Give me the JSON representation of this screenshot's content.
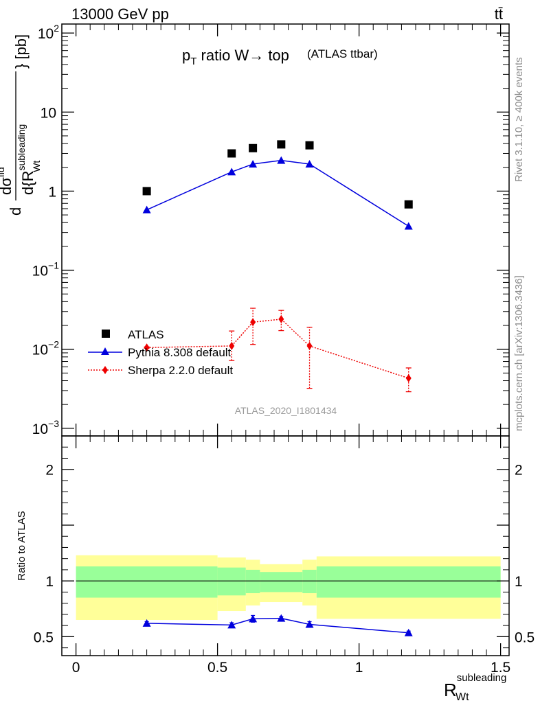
{
  "header": {
    "energy": "13000 GeV pp",
    "process": "tt̄"
  },
  "side_labels": {
    "rivet": "Rivet 3.1.10, ≥ 400k events",
    "mcplots": "mcplots.cern.ch [arXiv:1306.3436]"
  },
  "chart_data": [
    {
      "type": "scatter",
      "title_main": "p",
      "title_sub": "T",
      "title_rest": " ratio W→ top",
      "title_small": "(ATLAS ttbar)",
      "watermark": "ATLAS_2020_I1801434",
      "xlabel": "R",
      "xlabel_sup": "subleading",
      "xlabel_sub": "Wt",
      "ylabel_text": "d{R",
      "ylabel_sup": "subleading",
      "ylabel_sub": "Wt",
      "ylabel_unit": "} [pb]",
      "ylabel_num": "dσ",
      "ylabel_num_sup": "fid",
      "yscale": "log",
      "xlim": [
        -0.05,
        1.53
      ],
      "ylim": [
        0.0008,
        130
      ],
      "yticks": [
        {
          "v": 0.001,
          "base": "10",
          "exp": "−3"
        },
        {
          "v": 0.01,
          "base": "10",
          "exp": "−2"
        },
        {
          "v": 0.1,
          "base": "10",
          "exp": "−1"
        },
        {
          "v": 1,
          "base": "1",
          "exp": ""
        },
        {
          "v": 10,
          "base": "10",
          "exp": ""
        },
        {
          "v": 100,
          "base": "10",
          "exp": "2"
        }
      ],
      "legend_position": "lower-left",
      "series": [
        {
          "name": "ATLAS",
          "color": "#000000",
          "marker": "square",
          "x": [
            0.25,
            0.55,
            0.625,
            0.725,
            0.825,
            1.175
          ],
          "y": [
            1.0,
            3.0,
            3.5,
            3.9,
            3.8,
            0.68
          ]
        },
        {
          "name": "Pythia 8.308 default",
          "color": "#0000dd",
          "marker": "triangle",
          "line": "solid",
          "x": [
            0.25,
            0.55,
            0.625,
            0.725,
            0.825,
            1.175
          ],
          "y": [
            0.58,
            1.75,
            2.2,
            2.45,
            2.2,
            0.36
          ]
        },
        {
          "name": "Sherpa 2.2.0 default",
          "color": "#ee0000",
          "marker": "diamond",
          "line": "dotted",
          "x": [
            0.25,
            0.55,
            0.625,
            0.725,
            0.825,
            1.175
          ],
          "y": [
            0.0105,
            0.011,
            0.022,
            0.024,
            0.011,
            0.0043
          ],
          "yerr_low": [
            0.0103,
            0.0072,
            0.0115,
            0.0172,
            0.0032,
            0.0029
          ],
          "yerr_high": [
            0.0107,
            0.017,
            0.033,
            0.031,
            0.019,
            0.0058
          ]
        }
      ]
    },
    {
      "type": "scatter",
      "ylabel": "Ratio to ATLAS",
      "xlim": [
        -0.05,
        1.53
      ],
      "ylim": [
        0.33,
        2.3
      ],
      "xticks": [
        {
          "v": 0,
          "label": "0"
        },
        {
          "v": 0.5,
          "label": "0.5"
        },
        {
          "v": 1,
          "label": "1"
        },
        {
          "v": 1.5,
          "label": "1.5"
        }
      ],
      "yticks": [
        {
          "v": 0.5,
          "label": "0.5"
        },
        {
          "v": 1,
          "label": "1"
        },
        {
          "v": 2,
          "label": "2"
        }
      ],
      "bands": [
        {
          "x0": 0.0,
          "x1": 0.5,
          "inner": [
            0.85,
            1.13
          ],
          "outer": [
            0.65,
            1.23
          ]
        },
        {
          "x0": 0.5,
          "x1": 0.6,
          "inner": [
            0.87,
            1.12
          ],
          "outer": [
            0.73,
            1.21
          ]
        },
        {
          "x0": 0.6,
          "x1": 0.65,
          "inner": [
            0.89,
            1.1
          ],
          "outer": [
            0.78,
            1.19
          ]
        },
        {
          "x0": 0.65,
          "x1": 0.8,
          "inner": [
            0.9,
            1.08
          ],
          "outer": [
            0.81,
            1.15
          ]
        },
        {
          "x0": 0.8,
          "x1": 0.85,
          "inner": [
            0.89,
            1.1
          ],
          "outer": [
            0.78,
            1.19
          ]
        },
        {
          "x0": 0.85,
          "x1": 1.5,
          "inner": [
            0.85,
            1.13
          ],
          "outer": [
            0.66,
            1.22
          ]
        }
      ],
      "band_colors": {
        "inner": "#99ff99",
        "outer": "#ffff99"
      },
      "series": [
        {
          "name": "Pythia 8.308 default",
          "color": "#0000dd",
          "marker": "triangle",
          "x": [
            0.25,
            0.55,
            0.625,
            0.725,
            0.825,
            1.175
          ],
          "y": [
            0.62,
            0.605,
            0.66,
            0.665,
            0.61,
            0.535
          ],
          "yerr": [
            0.015,
            0.02,
            0.03,
            0.015,
            0.025,
            0.015
          ]
        }
      ]
    }
  ]
}
